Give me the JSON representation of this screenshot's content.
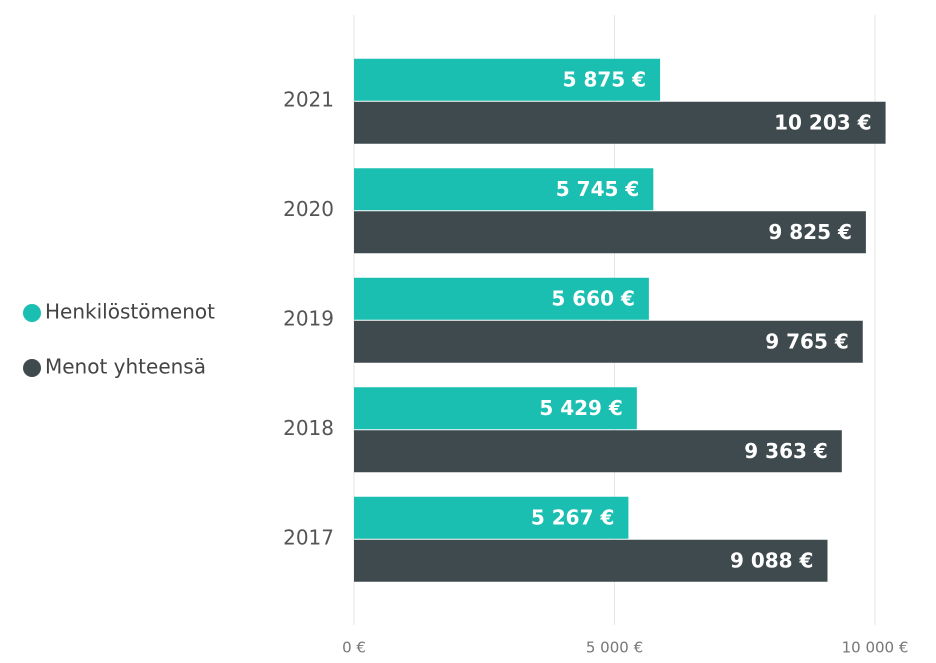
{
  "chart_data": {
    "type": "hbar",
    "categories": [
      "2021",
      "2020",
      "2019",
      "2018",
      "2017"
    ],
    "series": [
      {
        "name": "Henkilöstömenot",
        "color": "#1bbfb1",
        "values": [
          5875,
          5745,
          5660,
          5429,
          5267
        ],
        "value_labels": [
          "5 875 €",
          "5 745 €",
          "5 660 €",
          "5 429 €",
          "5 267 €"
        ]
      },
      {
        "name": "Menot yhteensä",
        "color": "#3e4a4e",
        "values": [
          10203,
          9825,
          9765,
          9363,
          9088
        ],
        "value_labels": [
          "10 203 €",
          "9 825 €",
          "9 765 €",
          "9 363 €",
          "9 088 €"
        ]
      }
    ],
    "xlim": [
      0,
      10000
    ],
    "xticks": [
      {
        "value": 0,
        "label": "0 €"
      },
      {
        "value": 5000,
        "label": "5 000 €"
      },
      {
        "value": 10000,
        "label": "10 000 €"
      }
    ],
    "grid": true,
    "legend": "left"
  }
}
